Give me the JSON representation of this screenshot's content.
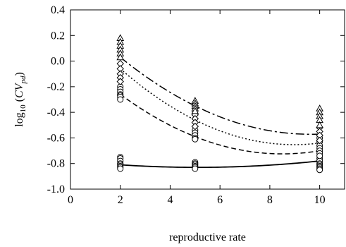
{
  "chart_data": {
    "type": "scatter",
    "title": "",
    "xlabel": "reproductive rate",
    "ylabel": "log10 (CV_pd)",
    "ylabel_parts": {
      "prefix": "log",
      "sub": "10",
      "open": " (",
      "main": "CV",
      "main_sub": "pd",
      "close": ")"
    },
    "xlim": [
      0,
      11
    ],
    "ylim": [
      -1.0,
      0.4
    ],
    "xticks": [
      0,
      2,
      4,
      6,
      8,
      10
    ],
    "xtick_labels": [
      "0",
      "2",
      "4",
      "6",
      "8",
      "10"
    ],
    "yticks": [
      -1.0,
      -0.8,
      -0.6,
      -0.4,
      -0.2,
      0.0,
      0.2,
      0.4
    ],
    "ytick_labels": [
      "-1.0",
      "-0.8",
      "-0.6",
      "-0.4",
      "-0.2",
      "0.0",
      "0.2",
      "0.4"
    ],
    "grid": false,
    "legend": "none",
    "marker_series": [
      {
        "marker": "circle",
        "x": 2,
        "values": [
          -0.75,
          -0.76,
          -0.78,
          -0.8,
          -0.81,
          -0.82,
          -0.83,
          -0.84
        ]
      },
      {
        "marker": "circle",
        "x": 5,
        "values": [
          -0.79,
          -0.8,
          -0.81,
          -0.82,
          -0.83,
          -0.84
        ]
      },
      {
        "marker": "circle",
        "x": 10,
        "values": [
          -0.76,
          -0.78,
          -0.8,
          -0.81,
          -0.82,
          -0.83,
          -0.84,
          -0.85
        ]
      },
      {
        "marker": "circle",
        "x": 2,
        "values": [
          -0.2,
          -0.22,
          -0.24,
          -0.26,
          -0.27,
          -0.28,
          -0.3
        ]
      },
      {
        "marker": "circle",
        "x": 5,
        "values": [
          -0.54,
          -0.56,
          -0.58,
          -0.6,
          -0.61
        ]
      },
      {
        "marker": "circle",
        "x": 10,
        "values": [
          -0.6,
          -0.63,
          -0.66,
          -0.68,
          -0.7,
          -0.72,
          -0.74
        ]
      },
      {
        "marker": "diamond",
        "x": 2,
        "values": [
          -0.02,
          -0.06,
          -0.1,
          -0.13,
          -0.16
        ]
      },
      {
        "marker": "diamond",
        "x": 5,
        "values": [
          -0.42,
          -0.45,
          -0.48,
          -0.51
        ]
      },
      {
        "marker": "diamond",
        "x": 10,
        "values": [
          -0.52,
          -0.55,
          -0.58,
          -0.62
        ]
      },
      {
        "marker": "triangle",
        "x": 2,
        "values": [
          0.18,
          0.15,
          0.12,
          0.09,
          0.06,
          0.03
        ]
      },
      {
        "marker": "triangle",
        "x": 5,
        "values": [
          -0.31,
          -0.33,
          -0.35,
          -0.37,
          -0.39
        ]
      },
      {
        "marker": "triangle",
        "x": 10,
        "values": [
          -0.37,
          -0.4,
          -0.43,
          -0.46,
          -0.5
        ]
      }
    ],
    "lines": [
      {
        "style": "solid",
        "x": [
          2,
          5,
          10
        ],
        "values": [
          -0.81,
          -0.83,
          -0.78
        ]
      },
      {
        "style": "dashed",
        "x": [
          2,
          5,
          10
        ],
        "values": [
          -0.26,
          -0.59,
          -0.7
        ]
      },
      {
        "style": "dotted",
        "x": [
          2,
          5,
          10
        ],
        "values": [
          -0.06,
          -0.46,
          -0.64
        ]
      },
      {
        "style": "dashdot",
        "x": [
          2,
          5,
          10
        ],
        "values": [
          0.03,
          -0.35,
          -0.57
        ]
      }
    ]
  }
}
